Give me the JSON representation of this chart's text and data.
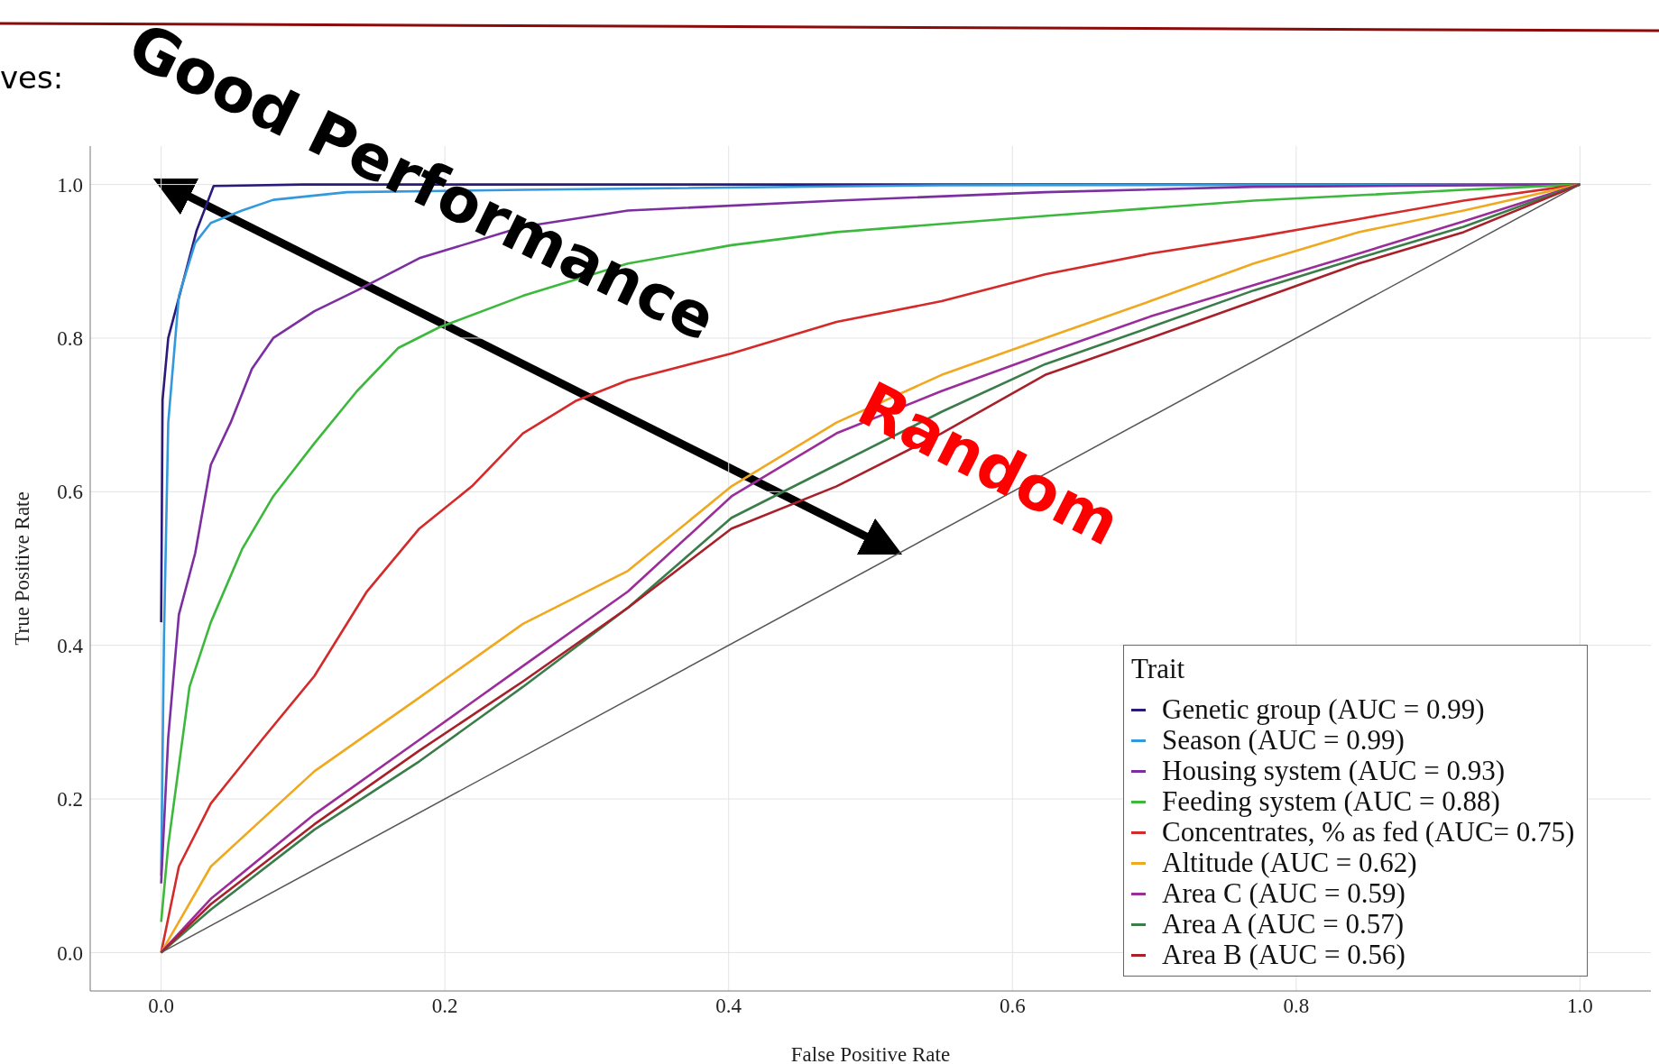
{
  "chart_data": {
    "type": "line",
    "xlabel": "False Positive Rate",
    "ylabel": "True Positive Rate",
    "legend_title": "Trait",
    "legend": "bottom right",
    "grid": true,
    "marker": "none",
    "line_style": "solid",
    "annotations": [
      "ves:",
      "Good Performance",
      "Random"
    ],
    "xlim": [
      -0.05,
      1.05
    ],
    "ylim": [
      -0.05,
      1.05
    ],
    "xticks": [
      {
        "value": 0,
        "label": "0.0"
      },
      {
        "value": 0.2,
        "label": "0.2"
      },
      {
        "value": 0.4,
        "label": "0.4"
      },
      {
        "value": 0.6,
        "label": "0.6"
      },
      {
        "value": 0.8,
        "label": "0.8"
      },
      {
        "value": 1,
        "label": "1.0"
      }
    ],
    "yticks": [
      {
        "value": 0,
        "label": "0.0"
      },
      {
        "value": 0.2,
        "label": "0.2"
      },
      {
        "value": 0.4,
        "label": "0.4"
      },
      {
        "value": 0.6,
        "label": "0.6"
      },
      {
        "value": 0.8,
        "label": "0.8"
      },
      {
        "value": 1,
        "label": "1.0"
      }
    ],
    "series": [
      {
        "name": "Genetic group (AUC = 0.99)",
        "color": "#2b1a7a",
        "x": [
          0,
          0.001,
          0.005,
          0.015,
          0.025,
          0.037,
          0.1,
          1
        ],
        "values": [
          0.43,
          0.72,
          0.8,
          0.87,
          0.94,
          0.998,
          1,
          1
        ]
      },
      {
        "name": "Season (AUC = 0.99)",
        "color": "#3399dd",
        "x": [
          0,
          0.002,
          0.005,
          0.0125,
          0.024,
          0.035,
          0.057,
          0.079,
          0.131,
          0.255,
          0.55,
          1
        ],
        "values": [
          0.1,
          0.41,
          0.69,
          0.855,
          0.924,
          0.95,
          0.966,
          0.98,
          0.99,
          0.993,
          0.999,
          1
        ]
      },
      {
        "name": "Housing system (AUC = 0.93)",
        "color": "#7b2fa0",
        "x": [
          0,
          0.005,
          0.0125,
          0.024,
          0.035,
          0.049,
          0.064,
          0.079,
          0.108,
          0.138,
          0.182,
          0.255,
          0.329,
          0.476,
          0.623,
          0.77,
          1
        ],
        "values": [
          0.09,
          0.28,
          0.44,
          0.52,
          0.635,
          0.69,
          0.76,
          0.8,
          0.835,
          0.862,
          0.904,
          0.945,
          0.966,
          0.979,
          0.99,
          0.997,
          1
        ]
      },
      {
        "name": "Feeding system (AUC = 0.88)",
        "color": "#3cb83c",
        "x": [
          0,
          0.005,
          0.02,
          0.035,
          0.057,
          0.079,
          0.108,
          0.138,
          0.167,
          0.196,
          0.255,
          0.329,
          0.402,
          0.476,
          0.623,
          0.77,
          0.918,
          1
        ],
        "values": [
          0.04,
          0.14,
          0.346,
          0.43,
          0.525,
          0.594,
          0.663,
          0.731,
          0.787,
          0.814,
          0.855,
          0.897,
          0.921,
          0.938,
          0.959,
          0.979,
          0.993,
          1
        ]
      },
      {
        "name": "Concentrates, % as fed (AUC= 0.75)",
        "color": "#d42a2a",
        "x": [
          0,
          0.0125,
          0.035,
          0.071,
          0.108,
          0.145,
          0.182,
          0.219,
          0.255,
          0.292,
          0.329,
          0.402,
          0.476,
          0.55,
          0.623,
          0.697,
          0.77,
          0.844,
          0.918,
          1
        ],
        "values": [
          0,
          0.112,
          0.194,
          0.277,
          0.36,
          0.47,
          0.552,
          0.607,
          0.676,
          0.718,
          0.745,
          0.78,
          0.821,
          0.848,
          0.883,
          0.91,
          0.931,
          0.955,
          0.979,
          1
        ]
      },
      {
        "name": "Altitude (AUC = 0.62)",
        "color": "#f0a81e",
        "x": [
          0,
          0.035,
          0.108,
          0.182,
          0.255,
          0.329,
          0.402,
          0.476,
          0.55,
          0.623,
          0.697,
          0.77,
          0.844,
          0.918,
          1
        ],
        "values": [
          0,
          0.112,
          0.236,
          0.332,
          0.428,
          0.497,
          0.607,
          0.69,
          0.752,
          0.8,
          0.848,
          0.897,
          0.938,
          0.966,
          1
        ]
      },
      {
        "name": "Area C (AUC = 0.59)",
        "color": "#9b2d9b",
        "x": [
          0,
          0.035,
          0.108,
          0.182,
          0.255,
          0.329,
          0.402,
          0.476,
          0.55,
          0.623,
          0.697,
          0.77,
          0.844,
          0.918,
          1
        ],
        "values": [
          0,
          0.07,
          0.18,
          0.277,
          0.373,
          0.47,
          0.594,
          0.676,
          0.731,
          0.78,
          0.828,
          0.869,
          0.91,
          0.952,
          1
        ]
      },
      {
        "name": "Area A (AUC = 0.57)",
        "color": "#3a7d4a",
        "x": [
          0,
          0.035,
          0.108,
          0.182,
          0.255,
          0.329,
          0.402,
          0.476,
          0.55,
          0.623,
          0.697,
          0.77,
          0.844,
          0.918,
          1
        ],
        "values": [
          0,
          0.056,
          0.16,
          0.249,
          0.346,
          0.449,
          0.566,
          0.635,
          0.704,
          0.766,
          0.814,
          0.862,
          0.904,
          0.945,
          1
        ]
      },
      {
        "name": "Area B (AUC = 0.56)",
        "color": "#a8202a",
        "x": [
          0,
          0.035,
          0.108,
          0.182,
          0.255,
          0.329,
          0.402,
          0.476,
          0.55,
          0.623,
          0.697,
          0.77,
          0.844,
          0.918,
          1
        ],
        "values": [
          0,
          0.063,
          0.167,
          0.263,
          0.353,
          0.449,
          0.552,
          0.607,
          0.676,
          0.752,
          0.8,
          0.848,
          0.897,
          0.938,
          1
        ]
      },
      {
        "type": "line",
        "color": "#555555",
        "x": [
          0,
          1
        ],
        "values": [
          0,
          1
        ]
      }
    ]
  }
}
